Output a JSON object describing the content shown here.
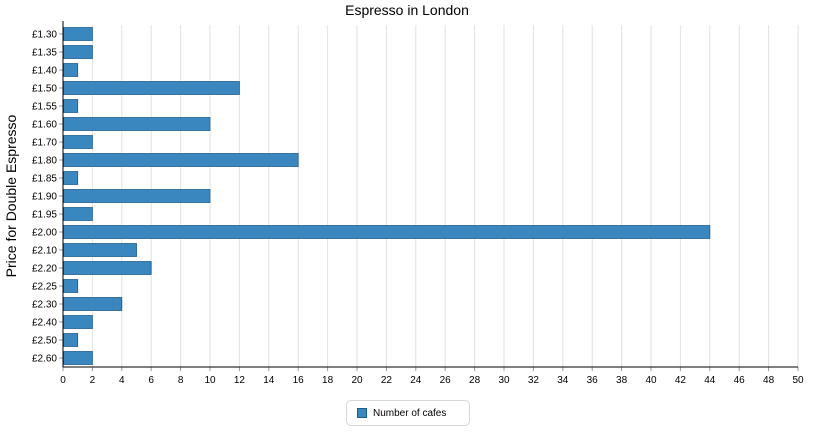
{
  "chart_data": {
    "type": "bar",
    "orientation": "horizontal",
    "title": "Espresso in London",
    "xlabel": "",
    "ylabel": "Price for Double Espresso",
    "categories": [
      "£1.30",
      "£1.35",
      "£1.40",
      "£1.50",
      "£1.55",
      "£1.60",
      "£1.70",
      "£1.80",
      "£1.85",
      "£1.90",
      "£1.95",
      "£2.00",
      "£2.10",
      "£2.20",
      "£2.25",
      "£2.30",
      "£2.40",
      "£2.50",
      "£2.60"
    ],
    "series": [
      {
        "name": "Number of cafes",
        "values": [
          2,
          2,
          1,
          12,
          1,
          10,
          2,
          16,
          1,
          10,
          2,
          44,
          5,
          6,
          1,
          4,
          2,
          1,
          2
        ]
      }
    ],
    "xlim": [
      0,
      50
    ],
    "xticks": [
      0,
      2,
      4,
      6,
      8,
      10,
      12,
      14,
      16,
      18,
      20,
      22,
      24,
      26,
      28,
      30,
      32,
      34,
      36,
      38,
      40,
      42,
      44,
      46,
      48,
      50
    ],
    "grid": "vertical",
    "legend": "bottom-center",
    "colors": {
      "bar": "#3a86be",
      "bar_border": "#1d5d8c",
      "grid": "#e2e2e2",
      "axis": "#000000"
    }
  }
}
